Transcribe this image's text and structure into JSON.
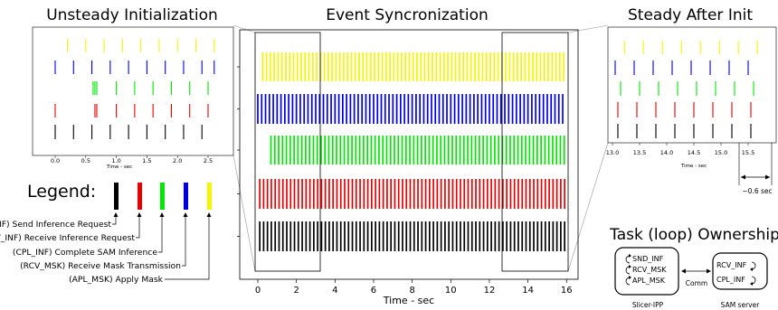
{
  "colors": {
    "snd_inf": "#000000",
    "rcv_inf": "#e60000",
    "cpl_inf": "#00e600",
    "rcv_msk": "#0000e6",
    "apl_msk": "#f5f500"
  },
  "titles": {
    "left": "Unsteady Initialization",
    "center": "Event Syncronization",
    "right": "Steady After Init"
  },
  "main_plot": {
    "xlabel": "Time - sec",
    "xticks": [
      "0",
      "2",
      "4",
      "6",
      "8",
      "10",
      "12",
      "14",
      "16"
    ]
  },
  "left_plot": {
    "xlabel": "Time - sec",
    "xticks": [
      "0.0",
      "0.5",
      "1.0",
      "1.5",
      "2.0",
      "2.5"
    ]
  },
  "right_plot": {
    "xlabel": "Time - sec",
    "xticks": [
      "13.0",
      "13.5",
      "14.0",
      "14.5",
      "15.0",
      "15.5"
    ],
    "annotation": "~0.6 sec"
  },
  "legend": {
    "title": "Legend:",
    "items": [
      "(SND_INF) Send Inference Request",
      "(RCV_INF) Receive Inference Request",
      "(CPL_INF) Complete SAM Inference",
      "(RCV_MSK) Receive Mask Transmission",
      "(APL_MSK) Apply Mask"
    ]
  },
  "ownership": {
    "title": "Task (loop) Ownership",
    "left_tasks": [
      "SND_INF",
      "RCV_MSK",
      "APL_MSK"
    ],
    "right_tasks": [
      "RCV_INF",
      "CPL_INF"
    ],
    "comm": "Comm",
    "left_caption": "Slicer-IPP",
    "right_caption": "SAM server"
  }
}
